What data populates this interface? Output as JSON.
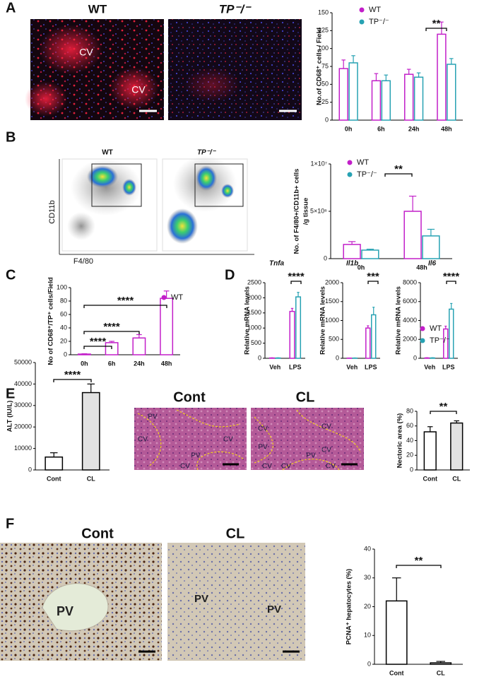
{
  "panel_letters": [
    "A",
    "B",
    "C",
    "D",
    "E",
    "F"
  ],
  "figure_texts": {
    "A": [
      "WT",
      "TP⁻/⁻",
      "CV",
      "CV"
    ],
    "B": [
      "WT",
      "TP⁻/⁻",
      "CD11b",
      "F4/80"
    ],
    "E": [
      "Cont",
      "CL",
      "PV",
      "CV",
      "CV",
      "PV",
      "CV",
      "CV",
      "CV",
      "PV",
      "CV",
      "CV",
      "CV",
      "PV",
      "CV"
    ],
    "F": [
      "Cont",
      "CL",
      "PV",
      "PV",
      "PV"
    ]
  },
  "chart_data": [
    {
      "type": "bar",
      "categories": [
        "0h",
        "6h",
        "24h",
        "48h"
      ],
      "series": [
        {
          "name": "WT",
          "color": "#c21fc9",
          "values": [
            72,
            55,
            64,
            120
          ],
          "errors": [
            12,
            10,
            7,
            17
          ]
        },
        {
          "name": "TP⁻/⁻",
          "color": "#27a2b3",
          "values": [
            80,
            55,
            60,
            78
          ],
          "errors": [
            10,
            8,
            6,
            8
          ]
        }
      ],
      "ylim": [
        0,
        150
      ],
      "yticks": [
        0,
        25,
        50,
        75,
        100,
        125,
        150
      ],
      "ylabel": [
        "No.of CD68⁺ cells / Field"
      ],
      "legend": true,
      "annotations": [
        "**"
      ]
    },
    {
      "type": "bar",
      "categories": [
        "0h",
        "48h"
      ],
      "series": [
        {
          "name": "WT",
          "color": "#c21fc9",
          "values": [
            1500000,
            5000000
          ],
          "errors": [
            300000,
            1600000
          ]
        },
        {
          "name": "TP⁻/⁻",
          "color": "#27a2b3",
          "values": [
            900000,
            2400000
          ],
          "errors": [
            100000,
            700000
          ]
        }
      ],
      "ylim": [
        0,
        10000000
      ],
      "yticks": [
        0,
        {
          "value": 5000000,
          "label": "5×10⁶"
        },
        {
          "value": 10000000,
          "label": "1×10⁷"
        }
      ],
      "ylabel": [
        "No. of F4/80+/CD11b+ cells",
        "/g tissue"
      ],
      "legend": true,
      "annotations": [
        "**"
      ]
    },
    {
      "type": "bar",
      "categories": [
        "0h",
        "6h",
        "24h",
        "48h"
      ],
      "series": [
        {
          "name": "WT",
          "color": "#c21fc9",
          "values": [
            1,
            18,
            25,
            84
          ],
          "errors": [
            0.5,
            2,
            5,
            11
          ]
        }
      ],
      "ylim": [
        0,
        100
      ],
      "yticks": [
        0,
        20,
        40,
        60,
        80,
        100
      ],
      "ylabel": [
        "No of CD68⁺/TP⁺ cells/Field"
      ],
      "legend": true,
      "annotations": [
        "****",
        "****",
        "****"
      ]
    },
    {
      "type": "bar",
      "title": "Tnfa",
      "categories": [
        "Veh",
        "LPS"
      ],
      "series": [
        {
          "name": "WT",
          "color": "#c21fc9",
          "values": [
            10,
            1550
          ],
          "errors": [
            5,
            100
          ]
        },
        {
          "name": "TP⁻/⁻",
          "color": "#27a2b3",
          "values": [
            10,
            2030
          ],
          "errors": [
            5,
            150
          ]
        }
      ],
      "ylim": [
        0,
        2500
      ],
      "yticks": [
        0,
        500,
        1000,
        1500,
        2000,
        2500
      ],
      "ylabel": [
        "Relative mRNA levels"
      ],
      "annotations": [
        "****"
      ]
    },
    {
      "type": "bar",
      "title": "Il1b",
      "categories": [
        "Veh",
        "LPS"
      ],
      "series": [
        {
          "name": "WT",
          "color": "#c21fc9",
          "values": [
            5,
            800
          ],
          "errors": [
            3,
            60
          ]
        },
        {
          "name": "TP⁻/⁻",
          "color": "#27a2b3",
          "values": [
            5,
            1150
          ],
          "errors": [
            5,
            200
          ]
        }
      ],
      "ylim": [
        0,
        2000
      ],
      "yticks": [
        0,
        500,
        1000,
        1500,
        2000
      ],
      "ylabel": [
        "Relative mRNA levels"
      ],
      "annotations": [
        "***"
      ]
    },
    {
      "type": "bar",
      "title": "Il6",
      "categories": [
        "Veh",
        "LPS"
      ],
      "series": [
        {
          "name": "WT",
          "color": "#c21fc9",
          "values": [
            40,
            3100
          ],
          "errors": [
            20,
            300
          ]
        },
        {
          "name": "TP⁻/⁻",
          "color": "#27a2b3",
          "values": [
            40,
            5200
          ],
          "errors": [
            20,
            600
          ]
        }
      ],
      "ylim": [
        0,
        8000
      ],
      "yticks": [
        0,
        2000,
        4000,
        6000,
        8000
      ],
      "ylabel": [
        "Relative mRNA levels"
      ],
      "legend": true,
      "annotations": [
        "****"
      ]
    },
    {
      "type": "bar",
      "categories": [
        "Cont",
        "CL"
      ],
      "values": [
        6000,
        36000
      ],
      "errors": [
        2000,
        4000
      ],
      "colors": [
        "#ffffff",
        "#e2e2e2"
      ],
      "ylim": [
        0,
        50000
      ],
      "yticks": [
        0,
        10000,
        20000,
        30000,
        40000,
        50000
      ],
      "ylabel": [
        "ALT (IU/L)"
      ],
      "annotations": [
        "****"
      ]
    },
    {
      "type": "bar",
      "categories": [
        "Cont",
        "CL"
      ],
      "values": [
        52,
        64
      ],
      "errors": [
        7,
        3
      ],
      "colors": [
        "#ffffff",
        "#e2e2e2"
      ],
      "ylim": [
        0,
        80
      ],
      "yticks": [
        0,
        20,
        40,
        60,
        80
      ],
      "ylabel": [
        "Nectoric area (%)"
      ],
      "annotations": [
        "**"
      ]
    },
    {
      "type": "bar",
      "categories": [
        "Cont",
        "CL"
      ],
      "values": [
        22,
        0.5
      ],
      "errors": [
        8,
        0.5
      ],
      "colors": [
        "#ffffff",
        "#ffffff"
      ],
      "ylim": [
        0,
        40
      ],
      "yticks": [
        0,
        10,
        20,
        30,
        40
      ],
      "ylabel": [
        "PCNA⁺ hepatocytes (%)"
      ],
      "annotations": [
        "**"
      ]
    }
  ]
}
